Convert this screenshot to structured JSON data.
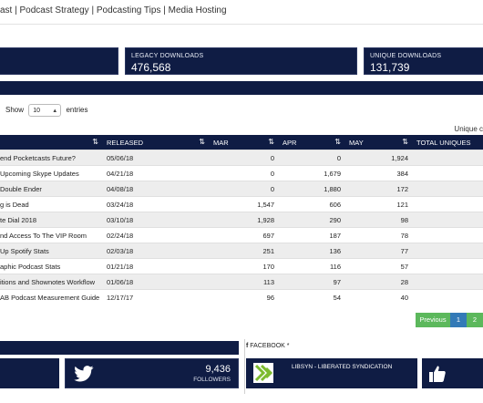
{
  "topnav": {
    "items": [
      "ast",
      "Podcast Strategy",
      "Podcasting Tips",
      "Media Hosting"
    ],
    "separator": "|"
  },
  "stats": [
    {
      "label": "LEGACY DOWNLOADS",
      "value": "476,568"
    },
    {
      "label": "UNIQUE DOWNLOADS",
      "value": "131,739"
    }
  ],
  "table_controls": {
    "show_label": "Show",
    "entries_value": "10",
    "entries_label": "entries",
    "unique_cut": "Unique c"
  },
  "table": {
    "headers": [
      "",
      "RELEASED",
      "MAR",
      "APR",
      "MAY",
      "TOTAL UNIQUES"
    ],
    "sort_icon": "⇅",
    "rows": [
      {
        "episode": "end Pocketcasts Future?",
        "released": "05/06/18",
        "mar": "0",
        "apr": "0",
        "may": "1,924"
      },
      {
        "episode": "Upcoming Skype Updates",
        "released": "04/21/18",
        "mar": "0",
        "apr": "1,679",
        "may": "384"
      },
      {
        "episode": " Double Ender",
        "released": "04/08/18",
        "mar": "0",
        "apr": "1,880",
        "may": "172"
      },
      {
        "episode": "g is Dead",
        "released": "03/24/18",
        "mar": "1,547",
        "apr": "606",
        "may": "121"
      },
      {
        "episode": "te Dial 2018",
        "released": "03/10/18",
        "mar": "1,928",
        "apr": "290",
        "may": "98"
      },
      {
        "episode": "nd Access To The VIP Room",
        "released": "02/24/18",
        "mar": "697",
        "apr": "187",
        "may": "78"
      },
      {
        "episode": "Up Spotify Stats",
        "released": "02/03/18",
        "mar": "251",
        "apr": "136",
        "may": "77"
      },
      {
        "episode": "aphic Podcast Stats",
        "released": "01/21/18",
        "mar": "170",
        "apr": "116",
        "may": "57"
      },
      {
        "episode": "itions and Shownotes Workflow",
        "released": "01/06/18",
        "mar": "113",
        "apr": "97",
        "may": "28"
      },
      {
        "episode": "AB Podcast Measurement Guide",
        "released": "12/17/17",
        "mar": "96",
        "apr": "54",
        "may": "40"
      }
    ]
  },
  "pagination": {
    "previous": "Previous",
    "page1": "1",
    "page2": "2"
  },
  "social": {
    "twitter_count": "9,436",
    "twitter_label": "FOLLOWERS",
    "facebook_heading": "FACEBOOK *",
    "libsyn_label": "LIBSYN - LIBERATED SYNDICATION"
  },
  "colors": {
    "navy": "#0f1c44",
    "green": "#5cb85c",
    "blue": "#337ab7"
  }
}
